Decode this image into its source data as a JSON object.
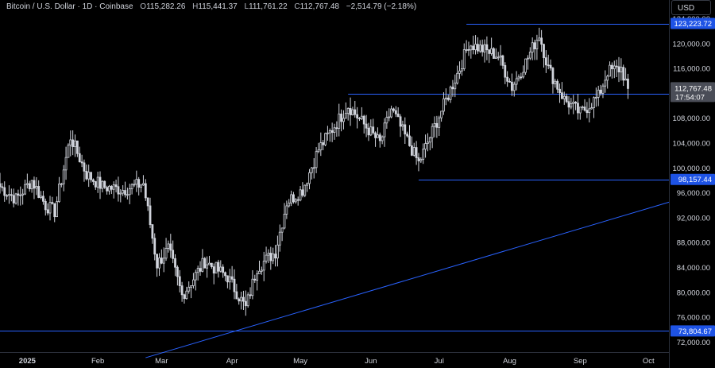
{
  "header": {
    "symbol": "Bitcoin / U.S. Dollar · 1D · Coinbase",
    "open_label": "O",
    "open": "115,282.26",
    "high_label": "H",
    "high": "115,441.37",
    "low_label": "L",
    "low": "111,761.22",
    "close_label": "C",
    "close": "112,767.48",
    "change": "−2,514.79 (−2.18%)",
    "currency": "USD"
  },
  "colors": {
    "background": "#000000",
    "candle": "#d1d4dc",
    "line": "#2962ff",
    "axis_text": "#d1d4dc",
    "label_blue": "#1e53e5",
    "label_grey": "#4a4d57"
  },
  "chart_data": {
    "type": "candlestick",
    "title": "",
    "xlabel": "",
    "ylabel": "",
    "x_ticks": [
      "2025",
      "Feb",
      "Mar",
      "Apr",
      "May",
      "Jun",
      "Jul",
      "Aug",
      "Sep",
      "Oct"
    ],
    "x_range": [
      "2024-12-20",
      "2025-10-10"
    ],
    "y_ticks": [
      "72,000.00",
      "76,000.00",
      "80,000.00",
      "84,000.00",
      "88,000.00",
      "92,000.00",
      "96,000.00",
      "100,000.00",
      "104,000.00",
      "108,000.00",
      "116,000.00",
      "120,000.00",
      "124,000.00"
    ],
    "ylim": [
      70400,
      127000
    ],
    "horizontal_levels": [
      {
        "label": "123,223.72",
        "value": 123223.72,
        "from": "2025-07-13"
      },
      {
        "label": "111,904.95",
        "value": 111904.95,
        "from": "2025-05-22"
      },
      {
        "label": "98,157.44",
        "value": 98157.44,
        "from": "2025-06-22"
      },
      {
        "label": "73,804.67",
        "value": 73804.67,
        "from": "2024-12-20"
      }
    ],
    "trendline": {
      "start": [
        "2025-02-22",
        69500
      ],
      "end": [
        "2025-10-10",
        94500
      ]
    },
    "last_price": {
      "label": "112,767.48",
      "countdown": "17:54:07",
      "value": 112767.48
    },
    "anchors": [
      [
        "2024-12-20",
        97000
      ],
      [
        "2024-12-27",
        95000
      ],
      [
        "2025-01-03",
        98000
      ],
      [
        "2025-01-09",
        94000
      ],
      [
        "2025-01-13",
        93000
      ],
      [
        "2025-01-20",
        105000
      ],
      [
        "2025-01-27",
        99000
      ],
      [
        "2025-02-03",
        97000
      ],
      [
        "2025-02-12",
        96500
      ],
      [
        "2025-02-21",
        97500
      ],
      [
        "2025-02-27",
        84500
      ],
      [
        "2025-03-04",
        87000
      ],
      [
        "2025-03-10",
        79500
      ],
      [
        "2025-03-20",
        85000
      ],
      [
        "2025-03-30",
        82500
      ],
      [
        "2025-04-07",
        77500
      ],
      [
        "2025-04-12",
        84000
      ],
      [
        "2025-04-20",
        86500
      ],
      [
        "2025-04-25",
        94500
      ],
      [
        "2025-05-02",
        96500
      ],
      [
        "2025-05-09",
        103000
      ],
      [
        "2025-05-22",
        110000
      ],
      [
        "2025-06-05",
        104000
      ],
      [
        "2025-06-10",
        109500
      ],
      [
        "2025-06-22",
        100800
      ],
      [
        "2025-06-30",
        107500
      ],
      [
        "2025-07-10",
        116000
      ],
      [
        "2025-07-14",
        120000
      ],
      [
        "2025-07-27",
        118000
      ],
      [
        "2025-08-02",
        113000
      ],
      [
        "2025-08-08",
        117000
      ],
      [
        "2025-08-14",
        121500
      ],
      [
        "2025-08-18",
        116000
      ],
      [
        "2025-08-25",
        111000
      ],
      [
        "2025-09-01",
        108800
      ],
      [
        "2025-09-09",
        111500
      ],
      [
        "2025-09-13",
        115500
      ],
      [
        "2025-09-19",
        116000
      ],
      [
        "2025-09-22",
        112767
      ]
    ]
  }
}
